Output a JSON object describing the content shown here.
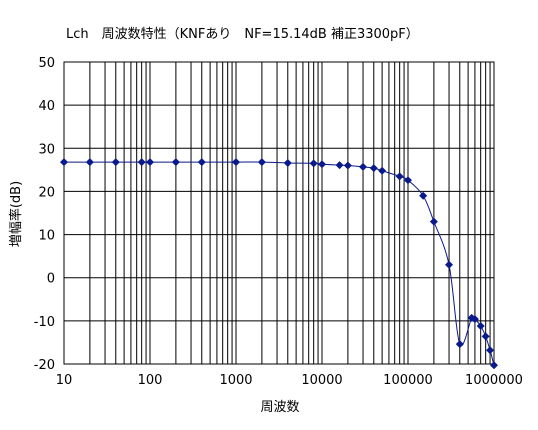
{
  "chart_data": {
    "type": "line",
    "title": "Lch　周波数特性（KNFあり　NF=15.14dB 補正3300pF）",
    "xlabel": "周波数",
    "ylabel": "増幅率(dB)",
    "x_scale": "log",
    "xlim": [
      10,
      1000000
    ],
    "ylim": [
      -20,
      50
    ],
    "grid": true,
    "x_ticks": [
      {
        "value": 10,
        "label": "10"
      },
      {
        "value": 100,
        "label": "100"
      },
      {
        "value": 1000,
        "label": "1000"
      },
      {
        "value": 10000,
        "label": "10000"
      },
      {
        "value": 100000,
        "label": "100000"
      },
      {
        "value": 1000000,
        "label": "1000000"
      }
    ],
    "y_ticks": [
      {
        "value": 50,
        "label": "50"
      },
      {
        "value": 40,
        "label": "40"
      },
      {
        "value": 30,
        "label": "30"
      },
      {
        "value": 20,
        "label": "20"
      },
      {
        "value": 10,
        "label": "10"
      },
      {
        "value": 0,
        "label": "0"
      },
      {
        "value": -10,
        "label": "-10"
      },
      {
        "value": -20,
        "label": "-20"
      }
    ],
    "series": [
      {
        "color": "#0a1a8c",
        "marker": "diamond",
        "x": [
          10,
          20,
          40,
          80,
          100,
          200,
          400,
          1000,
          2000,
          4000,
          8000,
          10000,
          16000,
          20000,
          30000,
          40000,
          50000,
          80000,
          100000,
          150000,
          200000,
          300000,
          400000,
          550000,
          600000,
          700000,
          800000,
          900000,
          1000000
        ],
        "y": [
          26.8,
          26.8,
          26.8,
          26.8,
          26.8,
          26.8,
          26.8,
          26.8,
          26.8,
          26.6,
          26.5,
          26.3,
          26.1,
          26.0,
          25.7,
          25.4,
          24.8,
          23.5,
          22.6,
          19.0,
          13.0,
          3.0,
          -15.4,
          -9.3,
          -9.6,
          -11.2,
          -13.6,
          -16.8,
          -20.3
        ]
      }
    ]
  }
}
